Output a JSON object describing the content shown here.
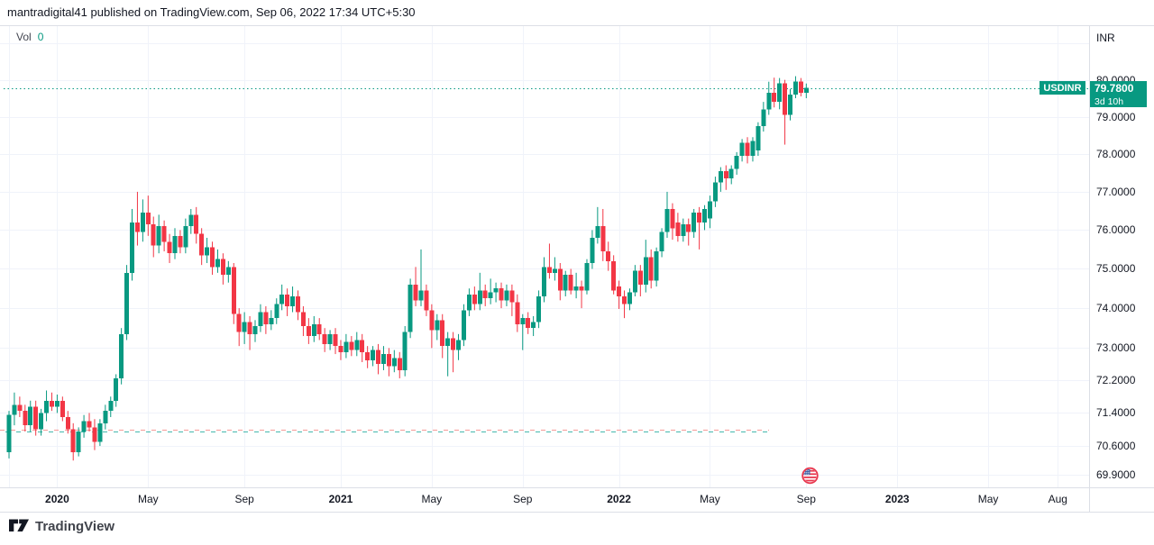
{
  "header": {
    "published_line": "mantradigital41 published on TradingView.com, Sep 06, 2022 17:34 UTC+5:30"
  },
  "volume_indicator": {
    "label": "Vol",
    "value": "0"
  },
  "price_label": {
    "symbol": "USDINR",
    "price": "79.7800",
    "countdown": "3d 10h"
  },
  "footer": {
    "logo_text": "TradingView"
  },
  "chart_data": {
    "type": "candlestick",
    "symbol": "USDINR",
    "timeframe_note": "weekly candles, Oct 2019 - Sep 2022",
    "colors": {
      "up": "#089981",
      "down": "#f23645",
      "grid": "#f0f3fa",
      "axis_border": "#dcdfe6"
    },
    "price_line": {
      "value": 79.78,
      "color": "#089981",
      "style": "dotted"
    },
    "alert_lines": [
      {
        "value": 70.99,
        "color": "#f59a98",
        "style": "dashed",
        "end_week_index": 142
      },
      {
        "value": 70.96,
        "color": "#45b8ac",
        "style": "dashed",
        "end_week_index": 142
      }
    ],
    "event_marker": {
      "name": "us-flag-holiday",
      "week_index": 149.7
    },
    "y_axis": {
      "scale": "log",
      "side": "right",
      "currency": "INR",
      "ticks": [
        {
          "label": "",
          "value": 81.0
        },
        {
          "label": "80.0000",
          "value": 80.0
        },
        {
          "label": "79.0000",
          "value": 79.0
        },
        {
          "label": "78.0000",
          "value": 78.0
        },
        {
          "label": "77.0000",
          "value": 77.0
        },
        {
          "label": "76.0000",
          "value": 76.0
        },
        {
          "label": "75.0000",
          "value": 75.0
        },
        {
          "label": "74.0000",
          "value": 74.0
        },
        {
          "label": "73.0000",
          "value": 73.0
        },
        {
          "label": "72.2000",
          "value": 72.2
        },
        {
          "label": "71.4000",
          "value": 71.4
        },
        {
          "label": "70.6000",
          "value": 70.6
        },
        {
          "label": "69.9000",
          "value": 69.9
        }
      ]
    },
    "x_axis": {
      "ticks": [
        {
          "label": "",
          "week_index": 0,
          "bold": false
        },
        {
          "label": "2020",
          "week_index": 9,
          "bold": true
        },
        {
          "label": "May",
          "week_index": 26,
          "bold": false
        },
        {
          "label": "Sep",
          "week_index": 44,
          "bold": false
        },
        {
          "label": "2021",
          "week_index": 62,
          "bold": true
        },
        {
          "label": "May",
          "week_index": 79,
          "bold": false
        },
        {
          "label": "Sep",
          "week_index": 96,
          "bold": false
        },
        {
          "label": "2022",
          "week_index": 114,
          "bold": true
        },
        {
          "label": "May",
          "week_index": 131,
          "bold": false
        },
        {
          "label": "Sep",
          "week_index": 149,
          "bold": false
        },
        {
          "label": "2023",
          "week_index": 166,
          "bold": true
        },
        {
          "label": "May",
          "week_index": 183,
          "bold": false
        },
        {
          "label": "Aug",
          "week_index": 196,
          "bold": false
        }
      ]
    },
    "candles": [
      [
        70.45,
        71.45,
        70.3,
        71.35
      ],
      [
        71.35,
        71.9,
        71.1,
        71.6
      ],
      [
        71.6,
        71.8,
        71.3,
        71.45
      ],
      [
        71.45,
        71.6,
        70.95,
        71.1
      ],
      [
        71.1,
        71.7,
        70.95,
        71.55
      ],
      [
        71.55,
        71.7,
        70.85,
        71.0
      ],
      [
        71.0,
        71.5,
        70.85,
        71.4
      ],
      [
        71.4,
        71.95,
        71.2,
        71.7
      ],
      [
        71.7,
        71.9,
        71.45,
        71.55
      ],
      [
        71.55,
        71.85,
        71.4,
        71.7
      ],
      [
        71.7,
        71.8,
        71.2,
        71.3
      ],
      [
        71.3,
        71.45,
        70.9,
        71.0
      ],
      [
        71.0,
        71.15,
        70.25,
        70.45
      ],
      [
        70.45,
        71.05,
        70.35,
        70.95
      ],
      [
        70.95,
        71.35,
        70.8,
        71.2
      ],
      [
        71.2,
        71.4,
        70.95,
        71.05
      ],
      [
        71.05,
        71.25,
        70.5,
        70.7
      ],
      [
        70.7,
        71.25,
        70.6,
        71.15
      ],
      [
        71.15,
        71.6,
        71.0,
        71.45
      ],
      [
        71.45,
        71.8,
        71.3,
        71.7
      ],
      [
        71.7,
        72.35,
        71.55,
        72.25
      ],
      [
        72.25,
        73.5,
        72.1,
        73.35
      ],
      [
        73.35,
        75.1,
        73.2,
        74.9
      ],
      [
        74.9,
        76.55,
        74.7,
        76.2
      ],
      [
        76.2,
        77.0,
        75.6,
        75.95
      ],
      [
        75.95,
        76.8,
        75.7,
        76.45
      ],
      [
        76.45,
        76.9,
        75.85,
        76.15
      ],
      [
        76.15,
        76.35,
        75.3,
        75.6
      ],
      [
        75.6,
        76.4,
        75.4,
        76.1
      ],
      [
        76.1,
        76.25,
        75.45,
        75.7
      ],
      [
        75.7,
        75.9,
        75.15,
        75.4
      ],
      [
        75.4,
        76.05,
        75.25,
        75.85
      ],
      [
        75.85,
        76.0,
        75.4,
        75.55
      ],
      [
        75.55,
        76.3,
        75.4,
        76.1
      ],
      [
        76.1,
        76.55,
        75.9,
        76.4
      ],
      [
        76.4,
        76.6,
        75.65,
        75.9
      ],
      [
        75.9,
        76.05,
        75.1,
        75.35
      ],
      [
        75.35,
        75.8,
        75.15,
        75.55
      ],
      [
        75.55,
        75.7,
        74.85,
        75.05
      ],
      [
        75.05,
        75.5,
        74.9,
        75.25
      ],
      [
        75.25,
        75.4,
        74.6,
        74.85
      ],
      [
        74.85,
        75.2,
        74.65,
        75.05
      ],
      [
        75.05,
        75.15,
        73.6,
        73.85
      ],
      [
        73.85,
        74.0,
        73.05,
        73.4
      ],
      [
        73.4,
        73.9,
        73.1,
        73.65
      ],
      [
        73.65,
        73.8,
        72.95,
        73.35
      ],
      [
        73.35,
        73.7,
        73.15,
        73.55
      ],
      [
        73.55,
        74.1,
        73.4,
        73.9
      ],
      [
        73.9,
        74.05,
        73.35,
        73.6
      ],
      [
        73.6,
        73.95,
        73.45,
        73.75
      ],
      [
        73.75,
        74.25,
        73.6,
        74.1
      ],
      [
        74.1,
        74.6,
        73.95,
        74.35
      ],
      [
        74.35,
        74.5,
        73.8,
        74.05
      ],
      [
        74.05,
        74.55,
        73.9,
        74.3
      ],
      [
        74.3,
        74.45,
        73.7,
        73.9
      ],
      [
        73.9,
        74.05,
        73.3,
        73.55
      ],
      [
        73.55,
        73.75,
        73.1,
        73.3
      ],
      [
        73.3,
        73.8,
        73.15,
        73.6
      ],
      [
        73.6,
        73.75,
        73.2,
        73.35
      ],
      [
        73.35,
        73.5,
        72.9,
        73.1
      ],
      [
        73.1,
        73.45,
        72.95,
        73.35
      ],
      [
        73.35,
        73.5,
        72.85,
        73.05
      ],
      [
        73.05,
        73.2,
        72.7,
        72.9
      ],
      [
        72.9,
        73.35,
        72.75,
        73.15
      ],
      [
        73.15,
        73.3,
        72.8,
        72.95
      ],
      [
        72.95,
        73.4,
        72.8,
        73.2
      ],
      [
        73.2,
        73.35,
        72.65,
        72.9
      ],
      [
        72.9,
        73.05,
        72.5,
        72.7
      ],
      [
        72.7,
        73.05,
        72.55,
        72.95
      ],
      [
        72.95,
        73.1,
        72.35,
        72.6
      ],
      [
        72.6,
        73.05,
        72.45,
        72.85
      ],
      [
        72.85,
        73.0,
        72.3,
        72.55
      ],
      [
        72.55,
        72.95,
        72.4,
        72.75
      ],
      [
        72.75,
        72.9,
        72.25,
        72.45
      ],
      [
        72.45,
        73.55,
        72.3,
        73.4
      ],
      [
        73.4,
        74.75,
        73.25,
        74.6
      ],
      [
        74.6,
        75.05,
        74.05,
        74.2
      ],
      [
        74.2,
        75.5,
        74.05,
        74.45
      ],
      [
        74.45,
        74.6,
        73.8,
        73.95
      ],
      [
        73.95,
        74.1,
        73.0,
        73.45
      ],
      [
        73.45,
        73.85,
        73.2,
        73.7
      ],
      [
        73.7,
        73.85,
        72.75,
        73.05
      ],
      [
        73.05,
        73.4,
        72.3,
        73.25
      ],
      [
        73.25,
        73.4,
        72.4,
        72.95
      ],
      [
        72.95,
        73.35,
        72.7,
        73.2
      ],
      [
        73.2,
        74.1,
        73.05,
        73.95
      ],
      [
        73.95,
        74.5,
        73.8,
        74.35
      ],
      [
        74.35,
        74.55,
        73.95,
        74.1
      ],
      [
        74.1,
        74.9,
        73.95,
        74.45
      ],
      [
        74.45,
        74.6,
        74.05,
        74.25
      ],
      [
        74.25,
        74.75,
        74.1,
        74.4
      ],
      [
        74.4,
        74.65,
        74.15,
        74.5
      ],
      [
        74.5,
        74.65,
        74.0,
        74.2
      ],
      [
        74.2,
        74.6,
        74.05,
        74.45
      ],
      [
        74.45,
        74.6,
        73.8,
        74.15
      ],
      [
        74.15,
        74.35,
        73.4,
        73.6
      ],
      [
        73.6,
        73.85,
        72.95,
        73.75
      ],
      [
        73.75,
        73.9,
        73.35,
        73.5
      ],
      [
        73.5,
        73.8,
        73.3,
        73.65
      ],
      [
        73.65,
        74.45,
        73.5,
        74.3
      ],
      [
        74.3,
        75.3,
        74.15,
        75.05
      ],
      [
        75.05,
        75.65,
        74.75,
        74.9
      ],
      [
        74.9,
        75.3,
        74.7,
        75.0
      ],
      [
        75.0,
        75.15,
        74.2,
        74.45
      ],
      [
        74.45,
        74.95,
        74.3,
        74.85
      ],
      [
        74.85,
        75.0,
        74.35,
        74.45
      ],
      [
        74.45,
        74.9,
        74.25,
        74.55
      ],
      [
        74.55,
        74.7,
        74.0,
        74.45
      ],
      [
        74.45,
        75.25,
        74.35,
        75.15
      ],
      [
        75.15,
        76.0,
        75.0,
        75.8
      ],
      [
        75.8,
        76.6,
        75.65,
        76.1
      ],
      [
        76.1,
        76.55,
        75.2,
        75.45
      ],
      [
        75.45,
        75.7,
        74.95,
        75.2
      ],
      [
        75.2,
        75.35,
        74.35,
        74.45
      ],
      [
        74.55,
        74.7,
        73.98,
        74.3
      ],
      [
        74.3,
        74.45,
        73.75,
        74.1
      ],
      [
        74.1,
        74.5,
        73.95,
        74.4
      ],
      [
        74.4,
        75.1,
        74.3,
        74.95
      ],
      [
        74.95,
        75.1,
        74.3,
        74.6
      ],
      [
        74.6,
        75.75,
        74.4,
        75.3
      ],
      [
        75.3,
        75.5,
        74.5,
        74.7
      ],
      [
        74.7,
        75.55,
        74.55,
        75.45
      ],
      [
        75.45,
        76.05,
        75.3,
        75.95
      ],
      [
        75.95,
        77.0,
        75.8,
        76.55
      ],
      [
        76.55,
        76.7,
        75.75,
        76.05
      ],
      [
        76.2,
        76.45,
        75.7,
        75.85
      ],
      [
        75.85,
        76.3,
        75.7,
        76.15
      ],
      [
        76.15,
        76.3,
        75.6,
        75.95
      ],
      [
        75.95,
        76.55,
        75.8,
        76.45
      ],
      [
        76.45,
        76.6,
        75.5,
        76.2
      ],
      [
        76.2,
        76.65,
        76.0,
        76.55
      ],
      [
        76.3,
        76.9,
        76.05,
        76.75
      ],
      [
        76.75,
        77.4,
        76.6,
        77.25
      ],
      [
        77.25,
        77.65,
        77.0,
        77.55
      ],
      [
        77.55,
        77.7,
        77.05,
        77.35
      ],
      [
        77.35,
        77.7,
        77.2,
        77.6
      ],
      [
        77.6,
        78.05,
        77.45,
        77.95
      ],
      [
        77.95,
        78.4,
        77.8,
        78.3
      ],
      [
        78.3,
        78.45,
        77.75,
        77.95
      ],
      [
        77.95,
        78.45,
        77.8,
        78.35
      ],
      [
        78.1,
        78.85,
        77.95,
        78.75
      ],
      [
        78.75,
        79.4,
        78.6,
        79.2
      ],
      [
        79.2,
        79.95,
        79.05,
        79.65
      ],
      [
        79.65,
        80.06,
        79.25,
        79.4
      ],
      [
        79.4,
        80.05,
        79.2,
        79.9
      ],
      [
        79.9,
        80.0,
        78.25,
        79.05
      ],
      [
        79.05,
        79.75,
        78.9,
        79.6
      ],
      [
        79.6,
        80.1,
        79.5,
        79.95
      ],
      [
        79.95,
        80.05,
        79.55,
        79.65
      ],
      [
        79.65,
        79.9,
        79.5,
        79.78
      ]
    ]
  }
}
